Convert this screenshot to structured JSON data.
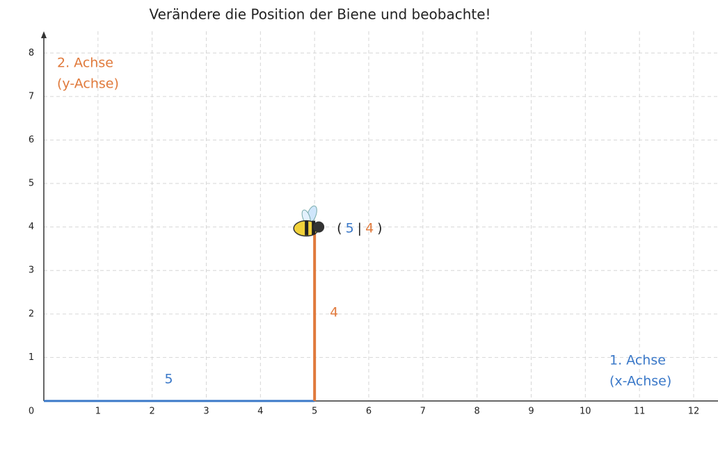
{
  "title": "Verändere die Position der Biene und beobachte!",
  "x_axis": {
    "label_lines": [
      "1. Achse",
      "(x-Achse)"
    ],
    "lim": [
      0,
      12.45
    ],
    "ticks": [
      0,
      1,
      2,
      3,
      4,
      5,
      6,
      7,
      8,
      9,
      10,
      11,
      12
    ],
    "color": "#3a78c8"
  },
  "y_axis": {
    "label_lines": [
      "2. Achse",
      "(y-Achse)"
    ],
    "lim": [
      0,
      8.5
    ],
    "ticks": [
      0,
      1,
      2,
      3,
      4,
      5,
      6,
      7,
      8
    ],
    "color": "#e07a3c"
  },
  "point": {
    "x": 5,
    "y": 4
  },
  "point_label": {
    "open": "(",
    "sep": "|",
    "close": ")"
  }
}
